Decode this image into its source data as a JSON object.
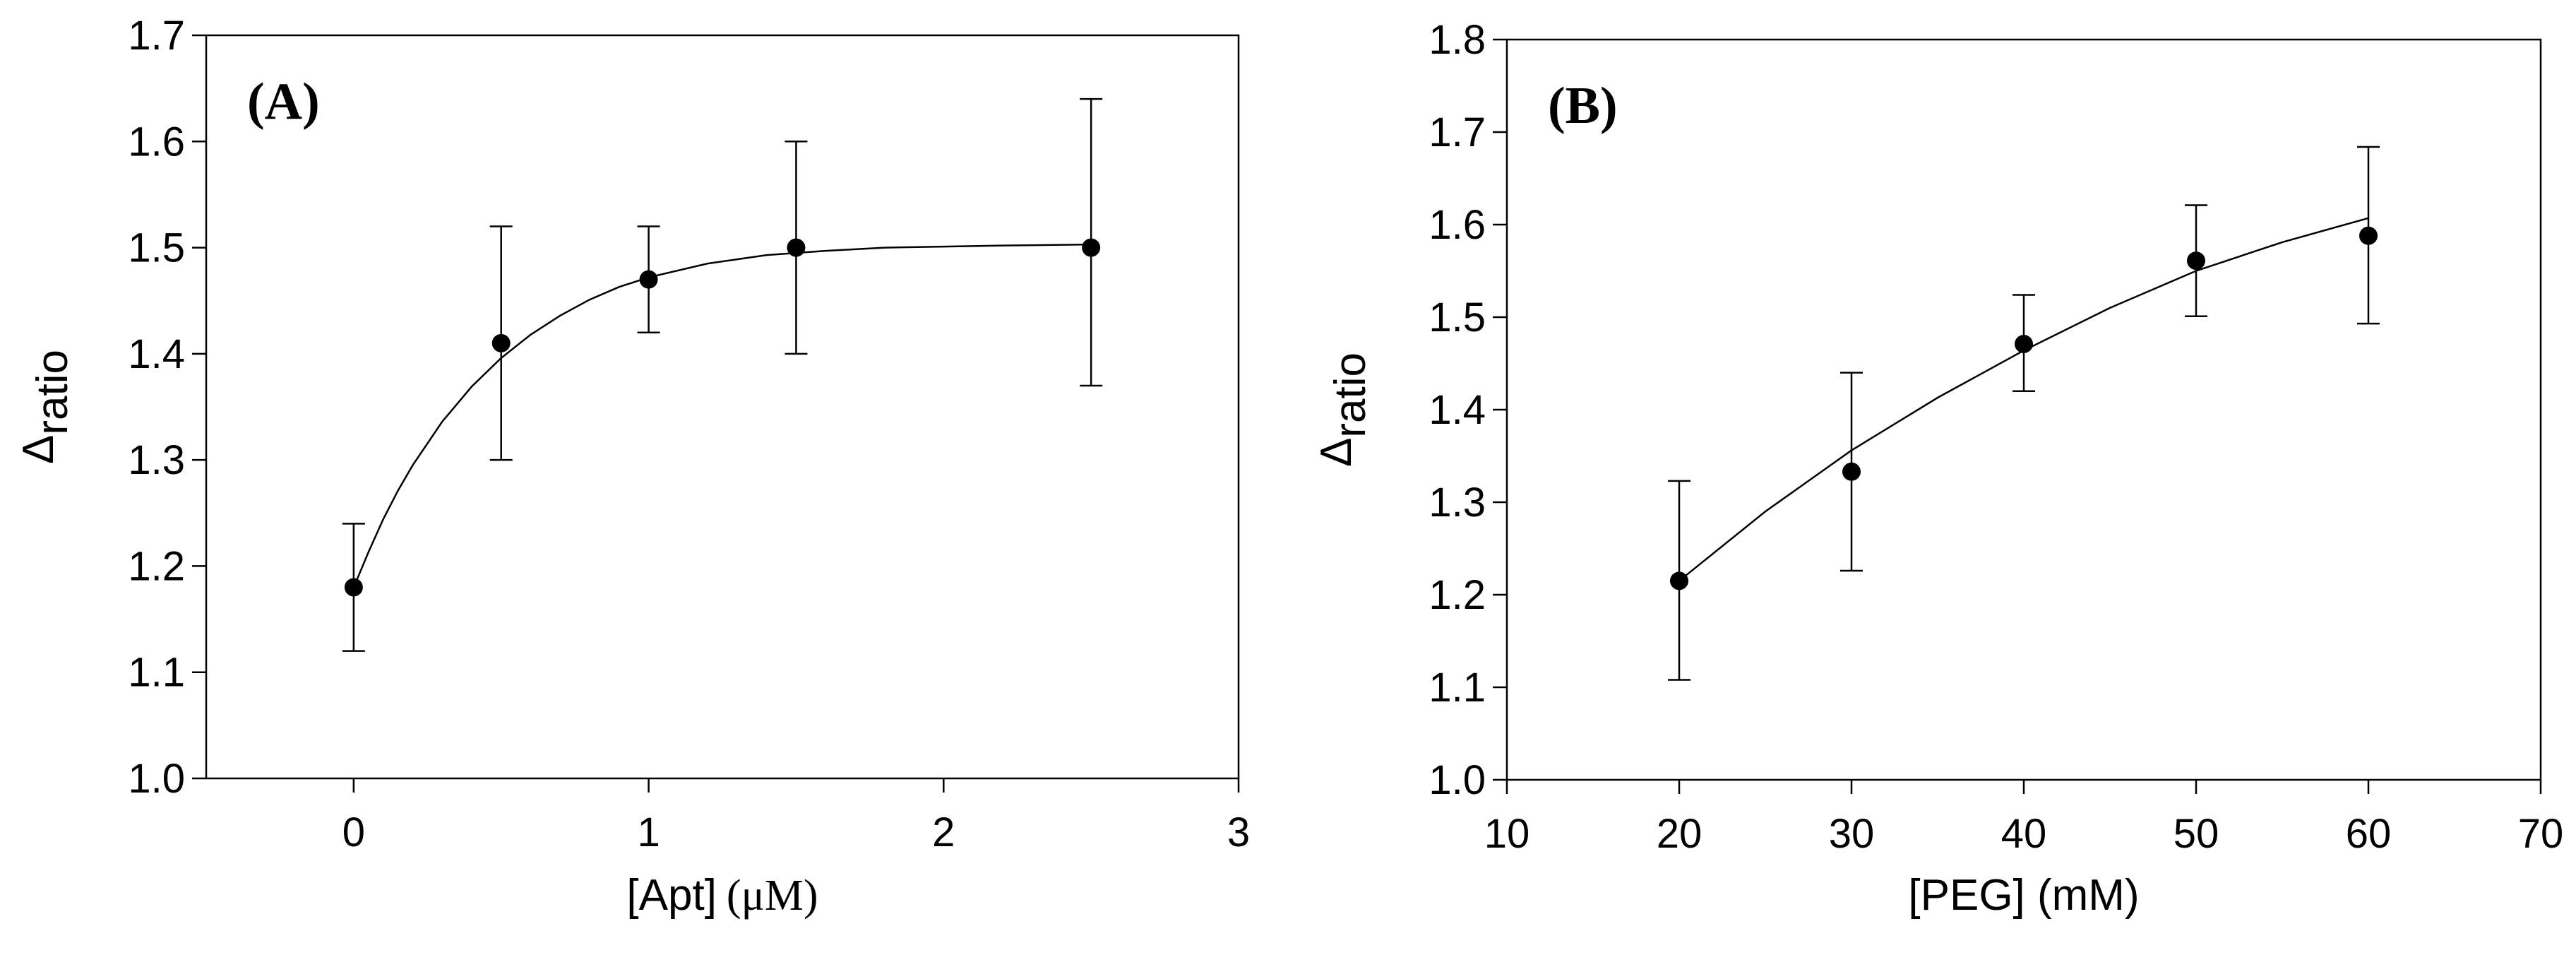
{
  "chart_data": [
    {
      "type": "scatter",
      "panel_label": "(A)",
      "xlabel": "[Apt]",
      "xlabel_unit": "(μM)",
      "ylabel_symbol": "Δ",
      "ylabel_sub": "ratio",
      "xlim": [
        -0.5,
        3
      ],
      "ylim": [
        1.0,
        1.7
      ],
      "x_ticks": [
        0,
        1,
        2,
        3
      ],
      "x_tick_labels": [
        "0",
        "1",
        "2",
        "3"
      ],
      "y_ticks": [
        1.0,
        1.1,
        1.2,
        1.3,
        1.4,
        1.5,
        1.6,
        1.7
      ],
      "y_tick_labels": [
        "1.0",
        "1.1",
        "1.2",
        "1.3",
        "1.4",
        "1.5",
        "1.6",
        "1.7"
      ],
      "grid": false,
      "points": [
        {
          "x": 0,
          "y": 1.18,
          "err_low": 1.12,
          "err_high": 1.24
        },
        {
          "x": 0.5,
          "y": 1.41,
          "err_low": 1.3,
          "err_high": 1.52
        },
        {
          "x": 1,
          "y": 1.47,
          "err_low": 1.42,
          "err_high": 1.52
        },
        {
          "x": 1.5,
          "y": 1.5,
          "err_low": 1.4,
          "err_high": 1.6
        },
        {
          "x": 2.5,
          "y": 1.5,
          "err_low": 1.37,
          "err_high": 1.64
        }
      ],
      "fit_curve": {
        "x": [
          0,
          0.05,
          0.1,
          0.15,
          0.2,
          0.3,
          0.4,
          0.5,
          0.6,
          0.7,
          0.8,
          0.9,
          1.0,
          1.2,
          1.4,
          1.6,
          1.8,
          2.0,
          2.2,
          2.5
        ],
        "y": [
          1.18,
          1.213,
          1.244,
          1.271,
          1.295,
          1.336,
          1.369,
          1.396,
          1.418,
          1.436,
          1.451,
          1.463,
          1.472,
          1.485,
          1.493,
          1.497,
          1.5,
          1.501,
          1.502,
          1.503
        ]
      }
    },
    {
      "type": "scatter",
      "panel_label": "(B)",
      "xlabel": "[PEG] (mM)",
      "ylabel_symbol": "Δ",
      "ylabel_sub": "ratio",
      "xlim": [
        10,
        70
      ],
      "ylim": [
        1.0,
        1.8
      ],
      "x_ticks": [
        10,
        20,
        30,
        40,
        50,
        60,
        70
      ],
      "x_tick_labels": [
        "10",
        "20",
        "30",
        "40",
        "50",
        "60",
        "70"
      ],
      "y_ticks": [
        1.0,
        1.1,
        1.2,
        1.3,
        1.4,
        1.5,
        1.6,
        1.7,
        1.8
      ],
      "y_tick_labels": [
        "1.0",
        "1.1",
        "1.2",
        "1.3",
        "1.4",
        "1.5",
        "1.6",
        "1.7",
        "1.8"
      ],
      "grid": false,
      "points": [
        {
          "x": 20,
          "y": 1.215,
          "err_low": 1.108,
          "err_high": 1.323
        },
        {
          "x": 30,
          "y": 1.333,
          "err_low": 1.226,
          "err_high": 1.44
        },
        {
          "x": 40,
          "y": 1.471,
          "err_low": 1.42,
          "err_high": 1.524
        },
        {
          "x": 50,
          "y": 1.561,
          "err_low": 1.501,
          "err_high": 1.621
        },
        {
          "x": 60,
          "y": 1.588,
          "err_low": 1.493,
          "err_high": 1.684
        }
      ],
      "fit_curve": {
        "x": [
          20,
          25,
          30,
          35,
          40,
          45,
          50,
          55,
          60
        ],
        "y": [
          1.215,
          1.29,
          1.356,
          1.413,
          1.464,
          1.51,
          1.55,
          1.581,
          1.607
        ]
      }
    }
  ]
}
